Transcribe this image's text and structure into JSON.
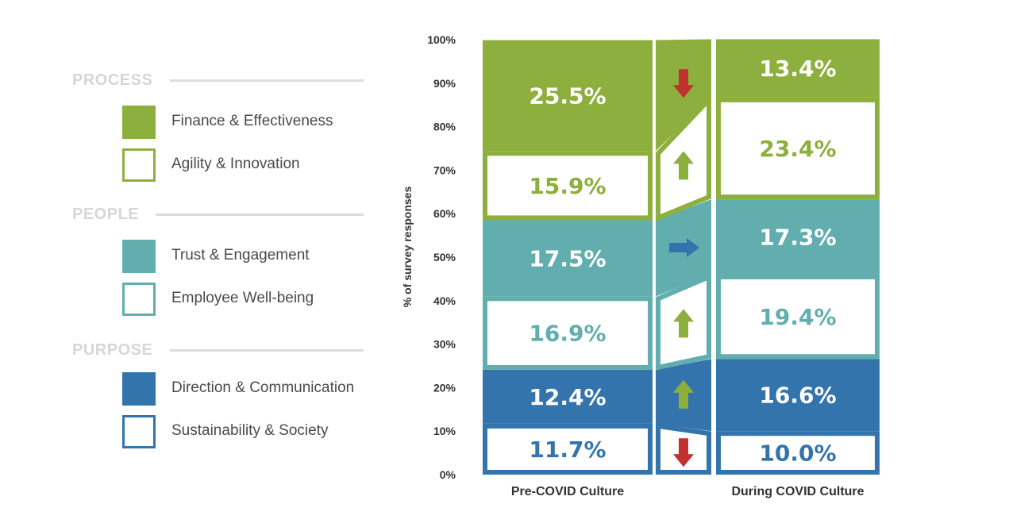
{
  "legend": {
    "groups": [
      {
        "title": "PROCESS",
        "items": [
          {
            "label": "Finance & Effectiveness",
            "style": "filled",
            "color": "#8daf3d"
          },
          {
            "label": "Agility & Innovation",
            "style": "outline",
            "color": "#8daf3d"
          }
        ]
      },
      {
        "title": "PEOPLE",
        "items": [
          {
            "label": "Trust & Engagement",
            "style": "filled",
            "color": "#62aeae"
          },
          {
            "label": "Employee Well-being",
            "style": "outline",
            "color": "#62aeae"
          }
        ]
      },
      {
        "title": "PURPOSE",
        "items": [
          {
            "label": "Direction & Communication",
            "style": "filled",
            "color": "#3474ad"
          },
          {
            "label": "Sustainability & Society",
            "style": "outline",
            "color": "#3474ad"
          }
        ]
      }
    ]
  },
  "chart_data": {
    "type": "bar",
    "ylabel": "% of survey responses",
    "ylim": [
      0,
      100
    ],
    "yticks": [
      "0%",
      "10%",
      "20%",
      "30%",
      "40%",
      "50%",
      "60%",
      "70%",
      "80%",
      "90%",
      "100%"
    ],
    "categories": [
      "Pre-COVID Culture",
      "During COVID Culture"
    ],
    "series": [
      {
        "name": "Sustainability & Society",
        "style": "outline",
        "color": "#3474ad",
        "values": [
          11.7,
          10.0
        ],
        "labels": [
          "11.7%",
          "10.0%"
        ],
        "change": "down"
      },
      {
        "name": "Direction & Communication",
        "style": "filled",
        "color": "#3474ad",
        "values": [
          12.4,
          16.6
        ],
        "labels": [
          "12.4%",
          "16.6%"
        ],
        "change": "up"
      },
      {
        "name": "Employee Well-being",
        "style": "outline",
        "color": "#62aeae",
        "values": [
          16.9,
          19.4
        ],
        "labels": [
          "16.9%",
          "19.4%"
        ],
        "change": "up"
      },
      {
        "name": "Trust & Engagement",
        "style": "filled",
        "color": "#62aeae",
        "values": [
          17.5,
          17.3
        ],
        "labels": [
          "17.5%",
          "17.3%"
        ],
        "change": "flat"
      },
      {
        "name": "Agility & Innovation",
        "style": "outline",
        "color": "#8daf3d",
        "values": [
          15.9,
          23.4
        ],
        "labels": [
          "15.9%",
          "23.4%"
        ],
        "change": "up"
      },
      {
        "name": "Finance & Effectiveness",
        "style": "filled",
        "color": "#8daf3d",
        "values": [
          25.5,
          13.4
        ],
        "labels": [
          "25.5%",
          "13.4%"
        ],
        "change": "down"
      }
    ],
    "arrow_colors": {
      "up": "#8daf3d",
      "down": "#c0312f",
      "flat": "#3474ad"
    }
  }
}
